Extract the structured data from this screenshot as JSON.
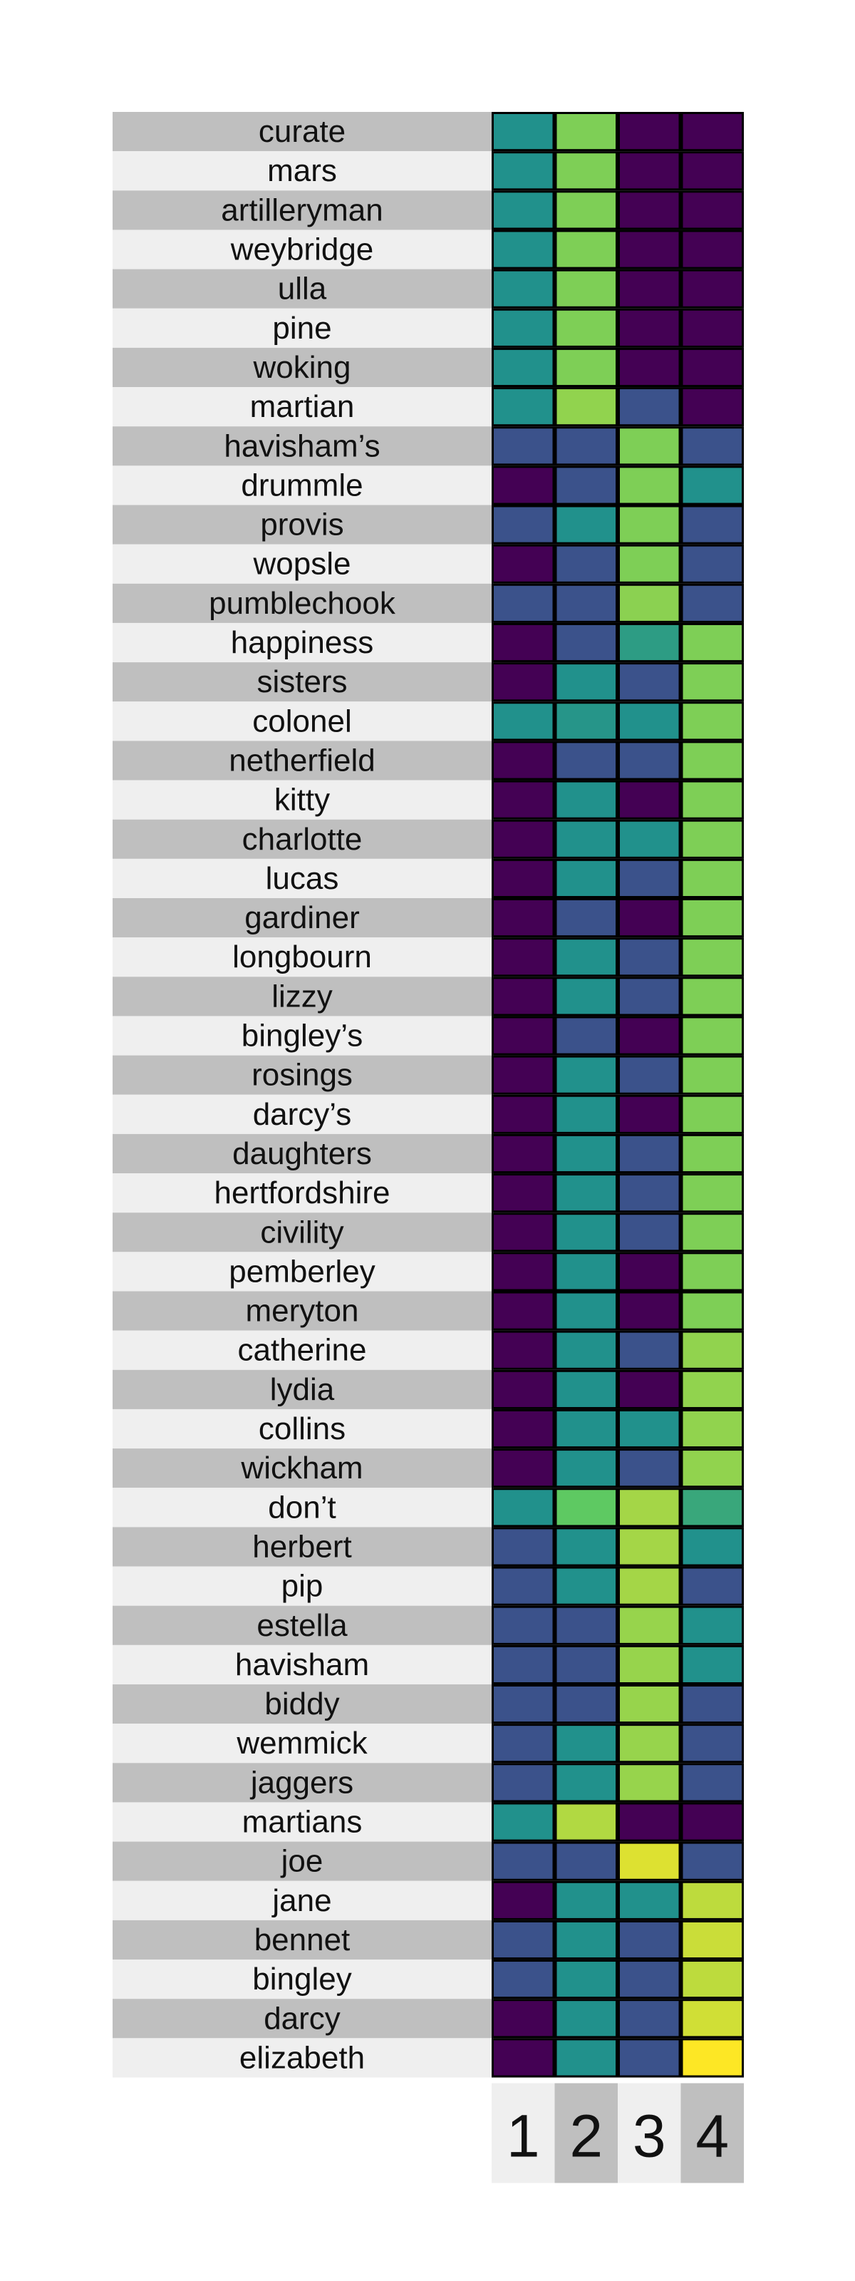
{
  "chart_data": {
    "type": "heatmap",
    "columns": [
      "1",
      "2",
      "3",
      "4"
    ],
    "rows": [
      "curate",
      "mars",
      "artilleryman",
      "weybridge",
      "ulla",
      "pine",
      "woking",
      "martian",
      "havisham’s",
      "drummle",
      "provis",
      "wopsle",
      "pumblechook",
      "happiness",
      "sisters",
      "colonel",
      "netherfield",
      "kitty",
      "charlotte",
      "lucas",
      "gardiner",
      "longbourn",
      "lizzy",
      "bingley’s",
      "rosings",
      "darcy’s",
      "daughters",
      "hertfordshire",
      "civility",
      "pemberley",
      "meryton",
      "catherine",
      "lydia",
      "collins",
      "wickham",
      "don’t",
      "herbert",
      "pip",
      "estella",
      "havisham",
      "biddy",
      "wemmick",
      "jaggers",
      "martians",
      "joe",
      "jane",
      "bennet",
      "bingley",
      "darcy",
      "elizabeth"
    ],
    "values": [
      [
        0.5,
        0.8,
        0.0,
        0.0
      ],
      [
        0.5,
        0.8,
        0.0,
        0.0
      ],
      [
        0.5,
        0.8,
        0.0,
        0.0
      ],
      [
        0.5,
        0.8,
        0.0,
        0.0
      ],
      [
        0.5,
        0.8,
        0.0,
        0.0
      ],
      [
        0.5,
        0.8,
        0.0,
        0.0
      ],
      [
        0.5,
        0.8,
        0.0,
        0.0
      ],
      [
        0.5,
        0.83,
        0.25,
        0.0
      ],
      [
        0.25,
        0.25,
        0.8,
        0.25
      ],
      [
        0.0,
        0.25,
        0.8,
        0.5
      ],
      [
        0.25,
        0.5,
        0.8,
        0.25
      ],
      [
        0.0,
        0.25,
        0.8,
        0.25
      ],
      [
        0.25,
        0.25,
        0.82,
        0.25
      ],
      [
        0.0,
        0.25,
        0.55,
        0.8
      ],
      [
        0.0,
        0.5,
        0.25,
        0.8
      ],
      [
        0.5,
        0.52,
        0.5,
        0.8
      ],
      [
        0.0,
        0.25,
        0.25,
        0.8
      ],
      [
        0.0,
        0.5,
        0.0,
        0.8
      ],
      [
        0.0,
        0.5,
        0.5,
        0.8
      ],
      [
        0.0,
        0.5,
        0.25,
        0.8
      ],
      [
        0.0,
        0.25,
        0.0,
        0.8
      ],
      [
        0.0,
        0.5,
        0.25,
        0.8
      ],
      [
        0.0,
        0.5,
        0.25,
        0.8
      ],
      [
        0.0,
        0.25,
        0.0,
        0.8
      ],
      [
        0.0,
        0.5,
        0.25,
        0.8
      ],
      [
        0.0,
        0.5,
        0.0,
        0.8
      ],
      [
        0.0,
        0.5,
        0.25,
        0.8
      ],
      [
        0.0,
        0.5,
        0.25,
        0.8
      ],
      [
        0.0,
        0.5,
        0.25,
        0.8
      ],
      [
        0.0,
        0.5,
        0.0,
        0.8
      ],
      [
        0.0,
        0.5,
        0.0,
        0.8
      ],
      [
        0.0,
        0.5,
        0.25,
        0.83
      ],
      [
        0.0,
        0.5,
        0.0,
        0.83
      ],
      [
        0.0,
        0.5,
        0.5,
        0.83
      ],
      [
        0.0,
        0.5,
        0.25,
        0.83
      ],
      [
        0.5,
        0.75,
        0.86,
        0.6
      ],
      [
        0.25,
        0.5,
        0.86,
        0.5
      ],
      [
        0.25,
        0.5,
        0.86,
        0.25
      ],
      [
        0.25,
        0.25,
        0.84,
        0.5
      ],
      [
        0.25,
        0.25,
        0.84,
        0.5
      ],
      [
        0.25,
        0.25,
        0.84,
        0.25
      ],
      [
        0.25,
        0.5,
        0.84,
        0.25
      ],
      [
        0.25,
        0.5,
        0.84,
        0.25
      ],
      [
        0.5,
        0.88,
        0.0,
        0.0
      ],
      [
        0.25,
        0.25,
        0.95,
        0.25
      ],
      [
        0.0,
        0.5,
        0.5,
        0.9
      ],
      [
        0.25,
        0.5,
        0.25,
        0.92
      ],
      [
        0.25,
        0.5,
        0.25,
        0.9
      ],
      [
        0.0,
        0.5,
        0.25,
        0.93
      ],
      [
        0.0,
        0.5,
        0.25,
        1.0
      ]
    ],
    "colormap": "viridis",
    "stripe_colors": [
      "#bfbfbf",
      "#efefef"
    ],
    "cell_border_color": "#000000",
    "grid": false,
    "legend": "none"
  }
}
